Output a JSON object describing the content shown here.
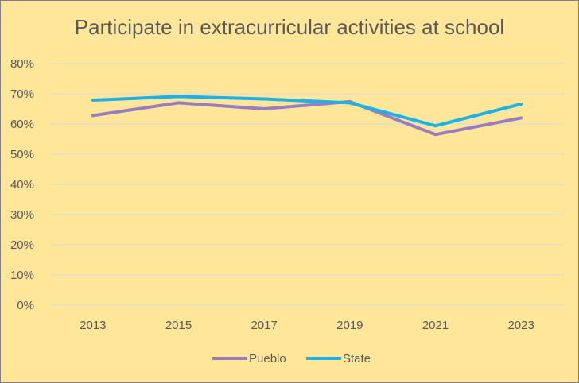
{
  "chart_data": {
    "type": "line",
    "title": "Participate in extracurricular activities at school",
    "categories": [
      "2013",
      "2015",
      "2017",
      "2019",
      "2021",
      "2023"
    ],
    "ylim": [
      0,
      0.8
    ],
    "yticks": [
      0,
      0.1,
      0.2,
      0.3,
      0.4,
      0.5,
      0.6,
      0.7,
      0.8
    ],
    "ytick_labels": [
      "0%",
      "10%",
      "20%",
      "30%",
      "40%",
      "50%",
      "60%",
      "70%",
      "80%"
    ],
    "grid": true,
    "legend_position": "bottom",
    "series": [
      {
        "name": "Pueblo",
        "color": "#9A7DBF",
        "values": [
          0.628,
          0.67,
          0.65,
          0.674,
          0.565,
          0.62
        ]
      },
      {
        "name": "State",
        "color": "#1AB2E8",
        "values": [
          0.679,
          0.691,
          0.683,
          0.67,
          0.594,
          0.666
        ]
      }
    ]
  }
}
